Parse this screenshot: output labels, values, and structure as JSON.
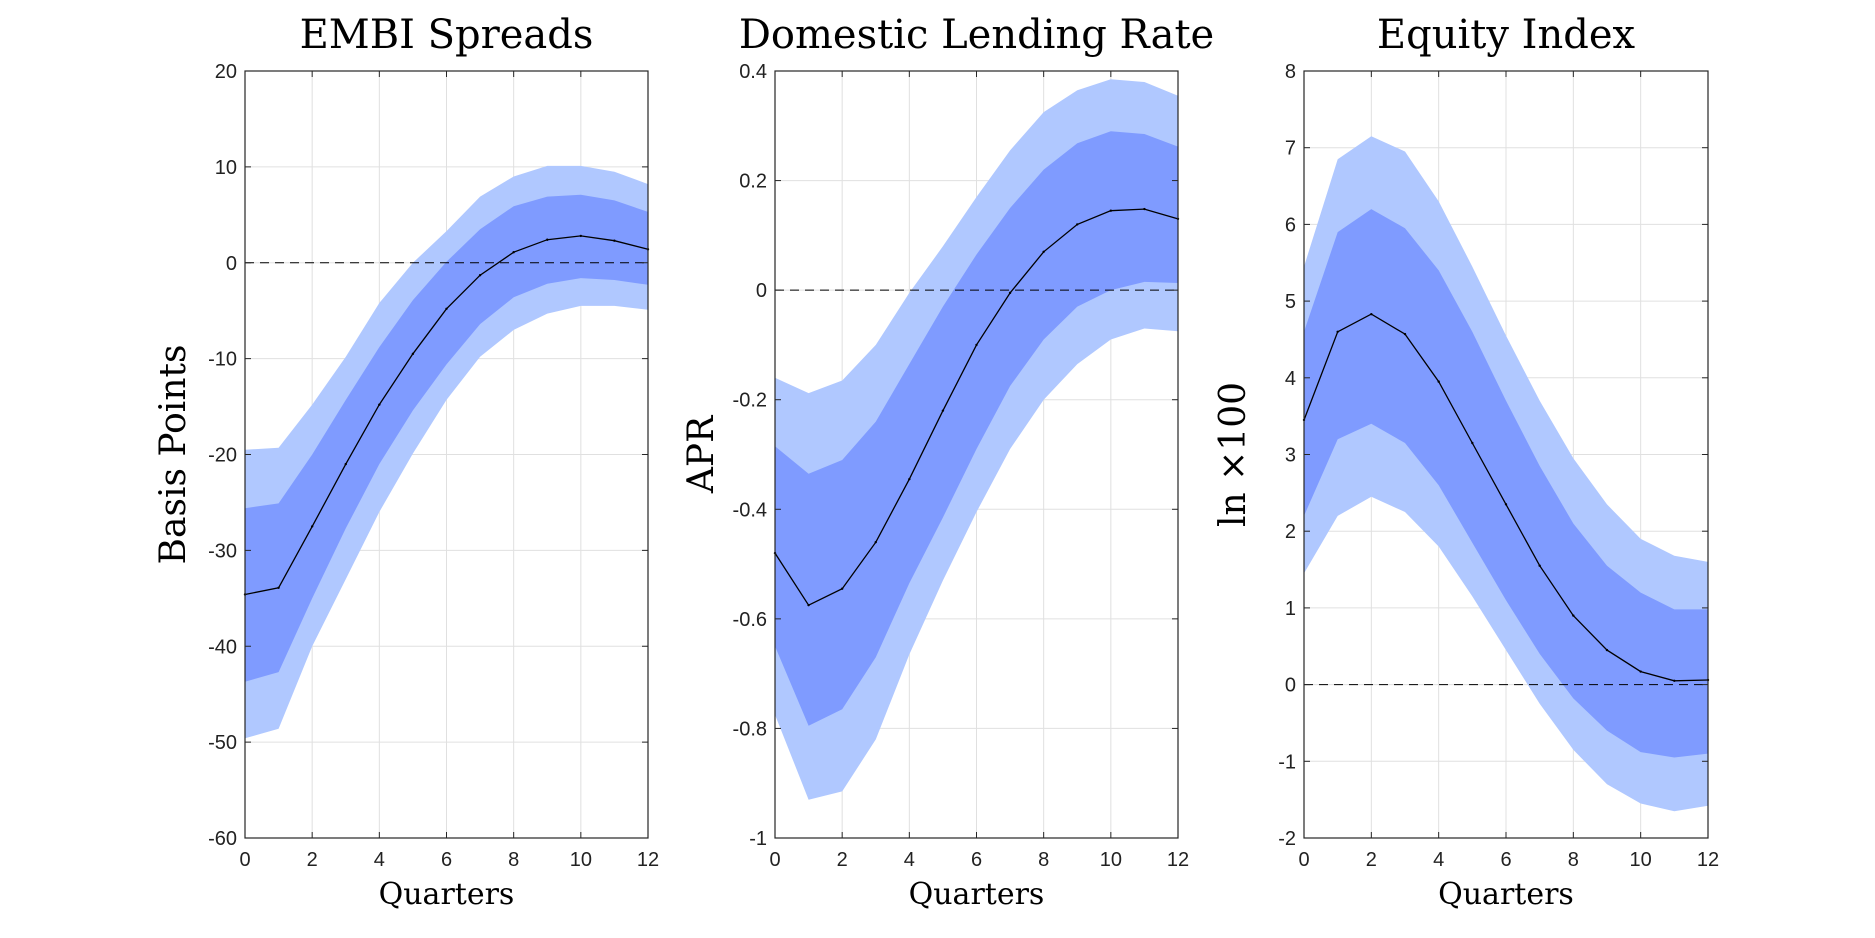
{
  "colors": {
    "band_outer": "#b0c8ff",
    "band_inner": "#7f9bff",
    "median": "#000000",
    "zero_line": "#000000",
    "grid": "#e0e0e0",
    "axis": "#262626"
  },
  "chart_data": [
    {
      "type": "area",
      "title": "EMBI Spreads",
      "xlabel": "Quarters",
      "ylabel": "Basis Points",
      "xlim": [
        0,
        12
      ],
      "ylim": [
        -60,
        20
      ],
      "xticks": [
        0,
        2,
        4,
        6,
        8,
        10,
        12
      ],
      "yticks": [
        -60,
        -50,
        -40,
        -30,
        -20,
        -10,
        0,
        10,
        20
      ],
      "xtick_labels": [
        "0",
        "2",
        "4",
        "6",
        "8",
        "10",
        "12"
      ],
      "ytick_labels": [
        "-60",
        "-50",
        "-40",
        "-30",
        "-20",
        "-10",
        "0",
        "10",
        "20"
      ],
      "grid": true,
      "zero_line": true,
      "x": [
        0,
        1,
        2,
        3,
        4,
        5,
        6,
        7,
        8,
        9,
        10,
        11,
        12
      ],
      "median": [
        -34.6,
        -33.9,
        -27.5,
        -21.0,
        -14.8,
        -9.5,
        -4.8,
        -1.3,
        1.1,
        2.4,
        2.8,
        2.3,
        1.4
      ],
      "inner_upper": [
        -25.6,
        -25.1,
        -20.0,
        -14.3,
        -8.8,
        -3.9,
        0.1,
        3.5,
        5.9,
        6.9,
        7.1,
        6.5,
        5.3
      ],
      "inner_lower": [
        -43.7,
        -42.7,
        -35.0,
        -27.7,
        -21.0,
        -15.4,
        -10.6,
        -6.4,
        -3.6,
        -2.2,
        -1.6,
        -1.8,
        -2.3
      ],
      "outer_upper": [
        -19.5,
        -19.3,
        -14.8,
        -9.8,
        -4.2,
        0.0,
        3.3,
        6.9,
        9.0,
        10.1,
        10.1,
        9.5,
        8.2
      ],
      "outer_lower": [
        -49.6,
        -48.6,
        -40.0,
        -33.0,
        -26.0,
        -19.9,
        -14.3,
        -9.8,
        -7.0,
        -5.3,
        -4.5,
        -4.5,
        -4.9
      ]
    },
    {
      "type": "area",
      "title": "Domestic Lending Rate",
      "xlabel": "Quarters",
      "ylabel": "APR",
      "xlim": [
        0,
        12
      ],
      "ylim": [
        -1,
        0.4
      ],
      "xticks": [
        0,
        2,
        4,
        6,
        8,
        10,
        12
      ],
      "yticks": [
        -1,
        -0.8,
        -0.6,
        -0.4,
        -0.2,
        0,
        0.2,
        0.4
      ],
      "xtick_labels": [
        "0",
        "2",
        "4",
        "6",
        "8",
        "10",
        "12"
      ],
      "ytick_labels": [
        "-1",
        "-0.8",
        "-0.6",
        "-0.4",
        "-0.2",
        "0",
        "0.2",
        "0.4"
      ],
      "grid": true,
      "zero_line": true,
      "x": [
        0,
        1,
        2,
        3,
        4,
        5,
        6,
        7,
        8,
        9,
        10,
        11,
        12
      ],
      "median": [
        -0.48,
        -0.575,
        -0.545,
        -0.46,
        -0.345,
        -0.22,
        -0.1,
        -0.005,
        0.07,
        0.12,
        0.145,
        0.148,
        0.13
      ],
      "inner_upper": [
        -0.285,
        -0.335,
        -0.31,
        -0.24,
        -0.135,
        -0.03,
        0.065,
        0.15,
        0.22,
        0.268,
        0.29,
        0.285,
        0.262
      ],
      "inner_lower": [
        -0.65,
        -0.795,
        -0.765,
        -0.67,
        -0.535,
        -0.415,
        -0.29,
        -0.175,
        -0.09,
        -0.03,
        0.0,
        0.015,
        0.013
      ],
      "outer_upper": [
        -0.16,
        -0.188,
        -0.165,
        -0.1,
        -0.005,
        0.08,
        0.17,
        0.255,
        0.325,
        0.365,
        0.385,
        0.38,
        0.355
      ],
      "outer_lower": [
        -0.775,
        -0.93,
        -0.915,
        -0.82,
        -0.665,
        -0.53,
        -0.405,
        -0.29,
        -0.2,
        -0.135,
        -0.09,
        -0.07,
        -0.075
      ]
    },
    {
      "type": "area",
      "title": "Equity Index",
      "xlabel": "Quarters",
      "ylabel": "ln ×100",
      "xlim": [
        0,
        12
      ],
      "ylim": [
        -2,
        8
      ],
      "xticks": [
        0,
        2,
        4,
        6,
        8,
        10,
        12
      ],
      "yticks": [
        -2,
        -1,
        0,
        1,
        2,
        3,
        4,
        5,
        6,
        7,
        8
      ],
      "xtick_labels": [
        "0",
        "2",
        "4",
        "6",
        "8",
        "10",
        "12"
      ],
      "ytick_labels": [
        "-2",
        "-1",
        "0",
        "1",
        "2",
        "3",
        "4",
        "5",
        "6",
        "7",
        "8"
      ],
      "grid": true,
      "zero_line": true,
      "x": [
        0,
        1,
        2,
        3,
        4,
        5,
        6,
        7,
        8,
        9,
        10,
        11,
        12
      ],
      "median": [
        3.45,
        4.6,
        4.83,
        4.57,
        3.95,
        3.15,
        2.35,
        1.55,
        0.9,
        0.45,
        0.17,
        0.05,
        0.06
      ],
      "inner_upper": [
        4.6,
        5.9,
        6.2,
        5.95,
        5.4,
        4.6,
        3.7,
        2.85,
        2.1,
        1.55,
        1.2,
        0.98,
        0.98
      ],
      "inner_lower": [
        2.2,
        3.2,
        3.4,
        3.15,
        2.6,
        1.85,
        1.1,
        0.4,
        -0.18,
        -0.6,
        -0.88,
        -0.95,
        -0.9
      ],
      "outer_upper": [
        5.45,
        6.85,
        7.15,
        6.95,
        6.3,
        5.45,
        4.55,
        3.7,
        2.95,
        2.35,
        1.9,
        1.68,
        1.6
      ],
      "outer_lower": [
        1.45,
        2.2,
        2.45,
        2.25,
        1.8,
        1.15,
        0.45,
        -0.25,
        -0.85,
        -1.3,
        -1.55,
        -1.65,
        -1.58
      ]
    }
  ]
}
